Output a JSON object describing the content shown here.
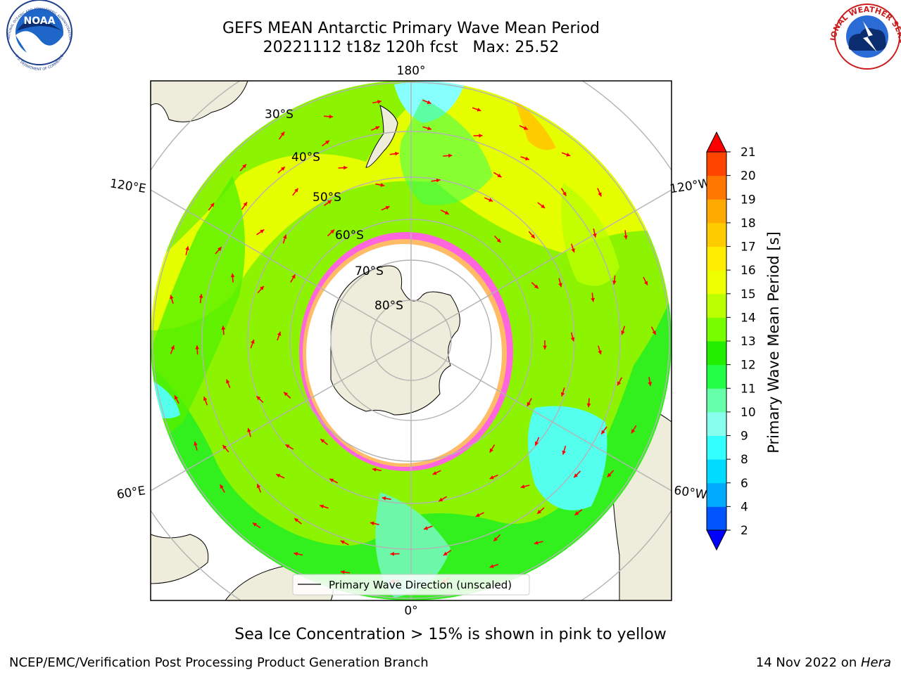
{
  "title": {
    "line1": "GEFS MEAN Antarctic Primary Wave Mean Period",
    "line2": "20221112 t18z 120h fcst   Max: 25.52"
  },
  "logos": {
    "noaa": {
      "text": "NOAA",
      "ring_top": "NATIONAL OCEANIC AND ATMOSPHERIC ADMINISTRATION",
      "ring_bottom": "U.S. DEPARTMENT OF COMMERCE"
    },
    "nws": {
      "ring_text": "NATIONAL WEATHER SERVICE"
    }
  },
  "map": {
    "projection": "south-polar-stereographic",
    "longitude_labels": {
      "top": "180°",
      "bottom": "0°",
      "upper_left": "120°E",
      "upper_right": "120°W",
      "lower_left": "60°E",
      "lower_right": "60°W"
    },
    "latitude_labels": [
      "30°S",
      "40°S",
      "50°S",
      "60°S",
      "70°S",
      "80°S"
    ],
    "legend": "Primary Wave Direction (unscaled)",
    "colors": {
      "land": "#eeecda",
      "ice_interior": "#ffffff",
      "arrow": "#ff0000",
      "graticule": "#b3b3b3",
      "ice_edge": "#ff44dd"
    }
  },
  "colorbar": {
    "label": "Primary Wave Mean Period [s]",
    "ticks": [
      "2",
      "4",
      "6",
      "8",
      "9",
      "10",
      "11",
      "12",
      "13",
      "14",
      "15",
      "16",
      "17",
      "18",
      "19",
      "20",
      "21"
    ],
    "colors": [
      "#0055ff",
      "#00aaff",
      "#00dcff",
      "#33ffff",
      "#88ffee",
      "#66ffaa",
      "#22ff44",
      "#22ee00",
      "#77ff00",
      "#bbff00",
      "#eeff00",
      "#ffee00",
      "#ffcc00",
      "#ffaa00",
      "#ff7700",
      "#ff4400"
    ],
    "under_color": "#0000ff",
    "over_color": "#ff0000"
  },
  "footer": {
    "ice_note": "Sea Ice Concentration > 15% is shown in pink to yellow",
    "left": "NCEP/EMC/Verification Post Processing Product Generation Branch",
    "right_prefix": "14 Nov 2022 on ",
    "right_machine": "Hera"
  }
}
